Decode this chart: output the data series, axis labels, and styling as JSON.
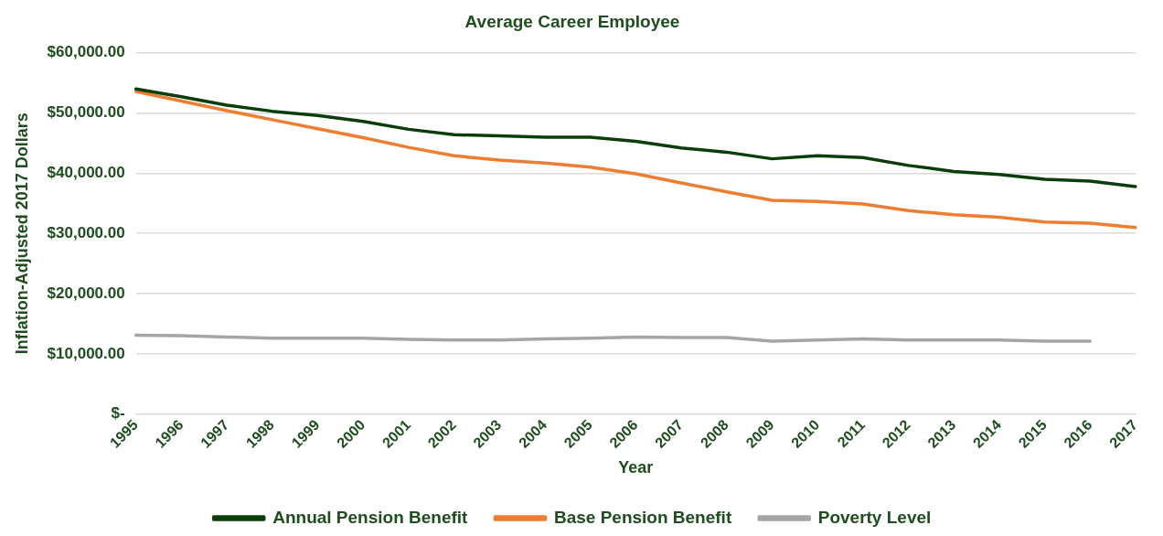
{
  "chart_data": {
    "type": "line",
    "title": "Average Career Employee",
    "xlabel": "Year",
    "ylabel": "Inflation-Adjusted 2017 Dollars",
    "categories": [
      "1995",
      "1996",
      "1997",
      "1998",
      "1999",
      "2000",
      "2001",
      "2002",
      "2003",
      "2004",
      "2005",
      "2006",
      "2007",
      "2008",
      "2009",
      "2010",
      "2011",
      "2012",
      "2013",
      "2014",
      "2015",
      "2016",
      "2017"
    ],
    "series": [
      {
        "name": "Annual Pension Benefit",
        "color": "#0b3d0b",
        "values": [
          54000,
          52700,
          51300,
          50300,
          49600,
          48600,
          47300,
          46400,
          46200,
          46000,
          46000,
          45300,
          44200,
          43500,
          42400,
          42900,
          42600,
          41300,
          40300,
          39800,
          39000,
          38700,
          37800
        ]
      },
      {
        "name": "Base Pension Benefit",
        "color": "#ed7d31",
        "values": [
          53600,
          52000,
          50400,
          48900,
          47400,
          45900,
          44300,
          42900,
          42200,
          41700,
          41000,
          39900,
          38400,
          36900,
          35500,
          35300,
          34900,
          33800,
          33100,
          32700,
          31900,
          31700,
          31000
        ]
      },
      {
        "name": "Poverty Level",
        "color": "#a5a5a5",
        "values": [
          13100,
          13000,
          12800,
          12600,
          12600,
          12600,
          12400,
          12300,
          12300,
          12500,
          12600,
          12800,
          12700,
          12700,
          12100,
          12300,
          12500,
          12300,
          12300,
          12300,
          12100,
          12100,
          null
        ]
      }
    ],
    "ylim": [
      0,
      60000
    ],
    "yticks": [
      {
        "value": 0,
        "label": "$-"
      },
      {
        "value": 10000,
        "label": "$10,000.00"
      },
      {
        "value": 20000,
        "label": "$20,000.00"
      },
      {
        "value": 30000,
        "label": "$30,000.00"
      },
      {
        "value": 40000,
        "label": "$40,000.00"
      },
      {
        "value": 50000,
        "label": "$50,000.00"
      },
      {
        "value": 60000,
        "label": "$60,000.00"
      }
    ],
    "grid": "y",
    "legend": "bottom",
    "marker": "none",
    "line_style": "solid"
  }
}
